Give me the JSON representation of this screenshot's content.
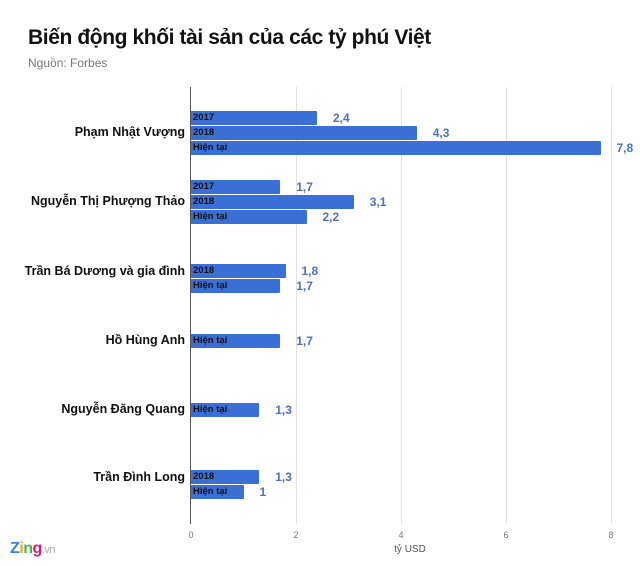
{
  "header": {
    "title": "Biến động khối tài sản của các tỷ phú Việt",
    "source": "Nguồn: Forbes"
  },
  "footer": {
    "logo_parts": [
      "Z",
      "i",
      "n",
      "g",
      ".vn"
    ]
  },
  "colors": {
    "bar": "#3a6fd6",
    "value_label": "#4a72c4"
  },
  "axis": {
    "ticks": [
      "0",
      "2",
      "4",
      "6",
      "8"
    ],
    "xlabel": "tỷ USD"
  },
  "chart_data": {
    "type": "bar",
    "orientation": "horizontal",
    "title": "Biến động khối tài sản của các tỷ phú Việt",
    "subtitle": "Nguồn: Forbes",
    "xlabel": "tỷ USD",
    "ylabel": "",
    "xlim": [
      0,
      8
    ],
    "grid": true,
    "categories": [
      "Phạm Nhật Vượng",
      "Nguyễn Thị Phượng Thảo",
      "Trần Bá Dương và gia đình",
      "Hồ Hùng Anh",
      "Nguyễn Đăng Quang",
      "Trần Đình Long"
    ],
    "groups": [
      {
        "name": "Phạm Nhật Vượng",
        "bars": [
          {
            "label": "2017",
            "value": 2.4,
            "display": "2,4"
          },
          {
            "label": "2018",
            "value": 4.3,
            "display": "4,3"
          },
          {
            "label": "Hiện tại",
            "value": 7.8,
            "display": "7,8"
          }
        ]
      },
      {
        "name": "Nguyễn Thị Phượng Thảo",
        "bars": [
          {
            "label": "2017",
            "value": 1.7,
            "display": "1,7"
          },
          {
            "label": "2018",
            "value": 3.1,
            "display": "3,1"
          },
          {
            "label": "Hiện tại",
            "value": 2.2,
            "display": "2,2"
          }
        ]
      },
      {
        "name": "Trần Bá Dương và gia đình",
        "bars": [
          {
            "label": "2018",
            "value": 1.8,
            "display": "1,8"
          },
          {
            "label": "Hiện tại",
            "value": 1.7,
            "display": "1,7"
          }
        ]
      },
      {
        "name": "Hồ Hùng Anh",
        "bars": [
          {
            "label": "Hiện tại",
            "value": 1.7,
            "display": "1,7"
          }
        ]
      },
      {
        "name": "Nguyễn Đăng Quang",
        "bars": [
          {
            "label": "Hiện tại",
            "value": 1.3,
            "display": "1,3"
          }
        ]
      },
      {
        "name": "Trần Đình Long",
        "bars": [
          {
            "label": "2018",
            "value": 1.3,
            "display": "1,3"
          },
          {
            "label": "Hiện tại",
            "value": 1.0,
            "display": "1"
          }
        ]
      }
    ]
  }
}
